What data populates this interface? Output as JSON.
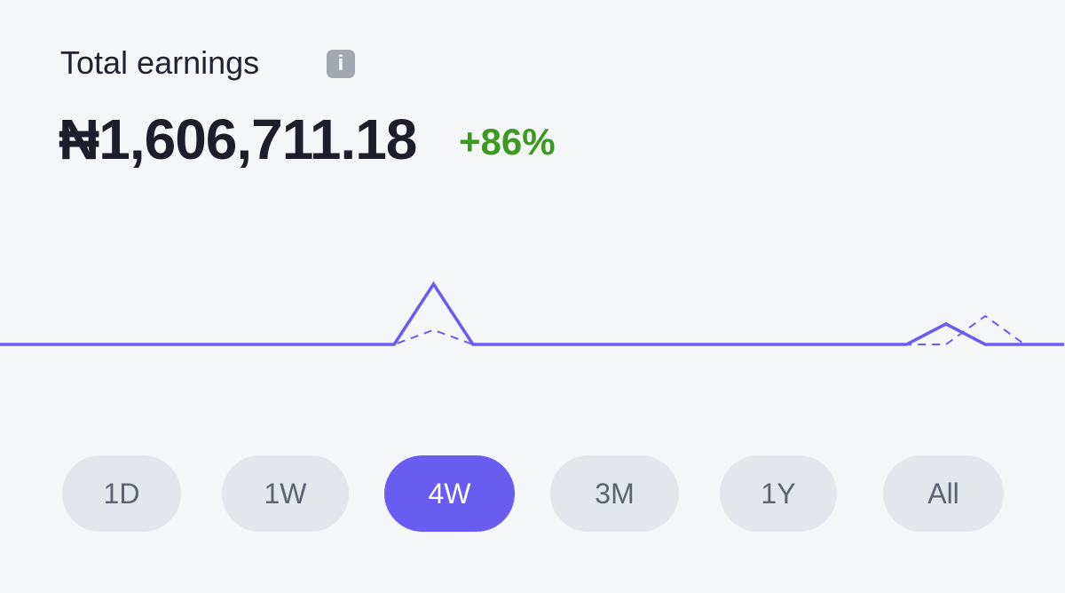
{
  "header": {
    "title": "Total earnings",
    "info_icon": "i",
    "amount": "₦1,606,711.18",
    "change": "+86%"
  },
  "chart_data": {
    "type": "line",
    "ylim": [
      0,
      1
    ],
    "series": [
      {
        "color": "#6a5cf0",
        "dashed": false,
        "values": [
          0,
          0,
          0,
          0,
          0,
          0,
          0,
          0,
          0,
          0,
          0,
          1,
          0,
          0,
          0,
          0,
          0,
          0,
          0,
          0,
          0,
          0,
          0,
          0,
          0.34,
          0,
          0,
          0
        ]
      },
      {
        "color": "#6a5cf0",
        "dashed": true,
        "values": [
          0,
          0,
          0,
          0,
          0,
          0,
          0,
          0,
          0,
          0,
          0,
          0.24,
          0,
          0,
          0,
          0,
          0,
          0,
          0,
          0,
          0,
          0,
          0,
          0,
          0,
          0.47,
          0,
          0
        ]
      }
    ]
  },
  "ranges": {
    "options": [
      "1D",
      "1W",
      "4W",
      "3M",
      "1Y",
      "All"
    ],
    "selected_index": 2
  }
}
